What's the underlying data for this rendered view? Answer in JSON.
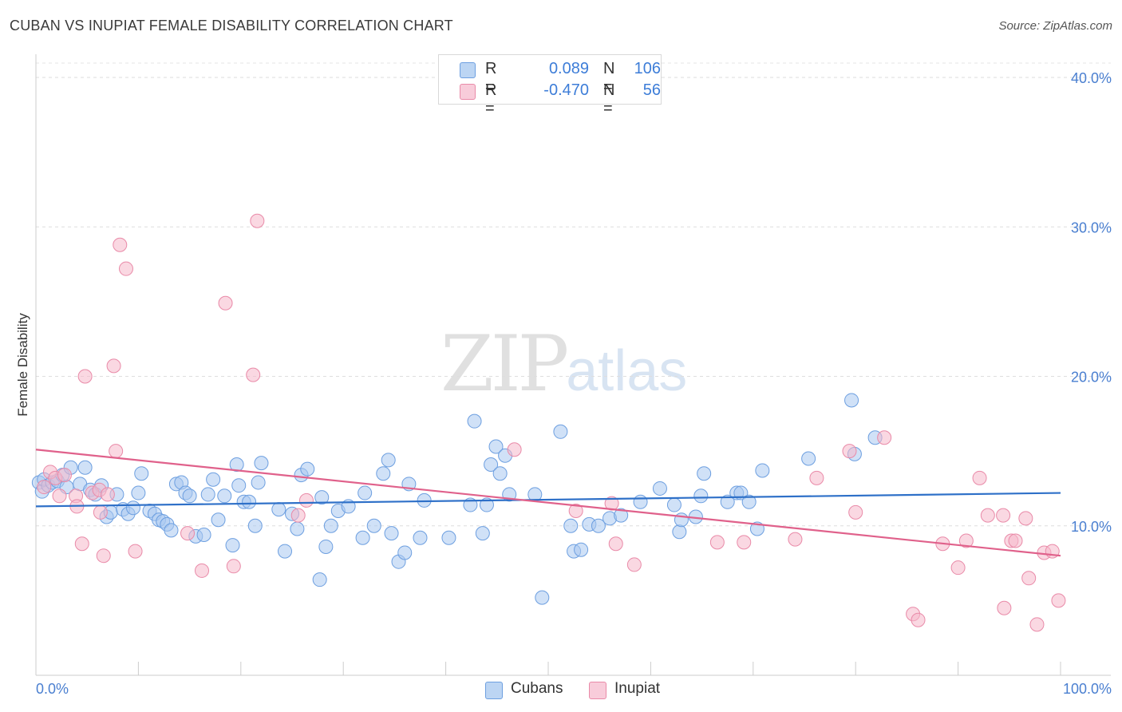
{
  "header": {
    "title": "CUBAN VS INUPIAT FEMALE DISABILITY CORRELATION CHART",
    "source": "Source: ZipAtlas.com"
  },
  "watermark": {
    "zip": "ZIP",
    "atlas": "atlas"
  },
  "legend": {
    "rows": [
      {
        "r_label": "R =",
        "r_value": "0.089",
        "n_label": "N =",
        "n_value": "106",
        "color": "#a9c8f0"
      },
      {
        "r_label": "R =",
        "r_value": "-0.470",
        "n_label": "N =",
        "n_value": "56",
        "color": "#f5b8cb"
      }
    ]
  },
  "bottom_legend": {
    "cubans": "Cubans",
    "inupiat": "Inupiat"
  },
  "chart_data": {
    "type": "scatter",
    "title": "CUBAN VS INUPIAT FEMALE DISABILITY CORRELATION CHART",
    "xlabel": "",
    "ylabel": "Female Disability",
    "xlim": [
      0,
      100
    ],
    "ylim": [
      0,
      40
    ],
    "x_tick_labels": [
      "0.0%",
      "100.0%"
    ],
    "y_ticks": [
      10,
      20,
      30,
      40
    ],
    "y_tick_labels": [
      "10.0%",
      "20.0%",
      "30.0%",
      "40.0%"
    ],
    "grid": true,
    "legend_position": "top-center",
    "series": [
      {
        "name": "Cubans",
        "color": "#a9c8f0",
        "stroke": "#6d9fe0",
        "trend_color": "#2e70c8",
        "trend": {
          "x": [
            0,
            100
          ],
          "y": [
            11.3,
            12.2
          ]
        },
        "points": [
          [
            0.3,
            12.9
          ],
          [
            0.6,
            12.3
          ],
          [
            0.8,
            13.1
          ],
          [
            1.2,
            12.7
          ],
          [
            1.6,
            12.9
          ],
          [
            2.1,
            13.0
          ],
          [
            2.6,
            13.4
          ],
          [
            3.0,
            12.6
          ],
          [
            3.4,
            13.9
          ],
          [
            4.3,
            12.8
          ],
          [
            4.8,
            13.9
          ],
          [
            5.3,
            12.4
          ],
          [
            5.8,
            12.1
          ],
          [
            6.4,
            12.7
          ],
          [
            6.9,
            10.6
          ],
          [
            7.3,
            10.9
          ],
          [
            7.9,
            12.1
          ],
          [
            8.5,
            11.1
          ],
          [
            9.0,
            10.8
          ],
          [
            9.5,
            11.2
          ],
          [
            10.0,
            12.2
          ],
          [
            10.3,
            13.5
          ],
          [
            11.1,
            11.0
          ],
          [
            11.6,
            10.8
          ],
          [
            12.0,
            10.4
          ],
          [
            12.4,
            10.3
          ],
          [
            12.8,
            10.1
          ],
          [
            13.2,
            9.7
          ],
          [
            13.7,
            12.8
          ],
          [
            14.2,
            12.9
          ],
          [
            14.6,
            12.2
          ],
          [
            15.0,
            12.0
          ],
          [
            15.6,
            9.3
          ],
          [
            16.4,
            9.4
          ],
          [
            16.8,
            12.1
          ],
          [
            17.3,
            13.1
          ],
          [
            17.8,
            10.4
          ],
          [
            18.4,
            12.0
          ],
          [
            19.2,
            8.7
          ],
          [
            19.6,
            14.1
          ],
          [
            19.8,
            12.7
          ],
          [
            20.3,
            11.6
          ],
          [
            20.8,
            11.6
          ],
          [
            21.4,
            10.0
          ],
          [
            21.7,
            12.9
          ],
          [
            22.0,
            14.2
          ],
          [
            23.7,
            11.1
          ],
          [
            24.3,
            8.3
          ],
          [
            25.0,
            10.8
          ],
          [
            25.5,
            9.8
          ],
          [
            25.9,
            13.4
          ],
          [
            26.5,
            13.8
          ],
          [
            27.7,
            6.4
          ],
          [
            27.9,
            11.9
          ],
          [
            28.3,
            8.6
          ],
          [
            28.8,
            10.0
          ],
          [
            29.5,
            11.0
          ],
          [
            30.5,
            11.3
          ],
          [
            31.9,
            9.2
          ],
          [
            32.1,
            12.2
          ],
          [
            33.0,
            10.0
          ],
          [
            33.9,
            13.5
          ],
          [
            34.4,
            14.4
          ],
          [
            34.7,
            9.5
          ],
          [
            35.4,
            7.6
          ],
          [
            36.0,
            8.2
          ],
          [
            36.4,
            12.8
          ],
          [
            37.5,
            9.2
          ],
          [
            37.9,
            11.7
          ],
          [
            40.3,
            9.2
          ],
          [
            42.4,
            11.4
          ],
          [
            42.8,
            17.0
          ],
          [
            43.6,
            9.5
          ],
          [
            44.0,
            11.4
          ],
          [
            44.4,
            14.1
          ],
          [
            44.9,
            15.3
          ],
          [
            45.3,
            13.5
          ],
          [
            45.8,
            14.7
          ],
          [
            46.2,
            12.1
          ],
          [
            48.7,
            12.1
          ],
          [
            49.4,
            5.2
          ],
          [
            51.2,
            16.3
          ],
          [
            52.2,
            10.0
          ],
          [
            52.5,
            8.3
          ],
          [
            53.2,
            8.4
          ],
          [
            54.0,
            10.1
          ],
          [
            54.9,
            10.0
          ],
          [
            56.0,
            10.5
          ],
          [
            57.1,
            10.7
          ],
          [
            59.0,
            11.6
          ],
          [
            60.9,
            12.5
          ],
          [
            62.3,
            11.4
          ],
          [
            62.8,
            9.6
          ],
          [
            63.0,
            10.4
          ],
          [
            64.4,
            10.6
          ],
          [
            64.9,
            12.0
          ],
          [
            65.2,
            13.5
          ],
          [
            67.5,
            11.6
          ],
          [
            68.4,
            12.2
          ],
          [
            68.8,
            12.2
          ],
          [
            69.6,
            11.6
          ],
          [
            70.4,
            9.8
          ],
          [
            70.9,
            13.7
          ],
          [
            75.4,
            14.5
          ],
          [
            79.6,
            18.4
          ],
          [
            79.9,
            14.8
          ],
          [
            81.9,
            15.9
          ]
        ]
      },
      {
        "name": "Inupiat",
        "color": "#f5b8cb",
        "stroke": "#e98aa8",
        "trend_color": "#e0618b",
        "trend": {
          "x": [
            0,
            100
          ],
          "y": [
            15.1,
            8.0
          ]
        },
        "points": [
          [
            0.8,
            12.6
          ],
          [
            1.4,
            13.6
          ],
          [
            1.9,
            13.2
          ],
          [
            2.3,
            12.0
          ],
          [
            2.8,
            13.4
          ],
          [
            3.9,
            12.0
          ],
          [
            4.0,
            11.3
          ],
          [
            4.5,
            8.8
          ],
          [
            4.8,
            20.0
          ],
          [
            5.5,
            12.2
          ],
          [
            6.2,
            12.4
          ],
          [
            6.3,
            10.9
          ],
          [
            6.6,
            8.0
          ],
          [
            7.0,
            12.1
          ],
          [
            7.6,
            20.7
          ],
          [
            7.8,
            15.0
          ],
          [
            8.2,
            28.8
          ],
          [
            8.8,
            27.2
          ],
          [
            9.7,
            8.3
          ],
          [
            14.8,
            9.5
          ],
          [
            16.2,
            7.0
          ],
          [
            18.5,
            24.9
          ],
          [
            19.3,
            7.3
          ],
          [
            21.2,
            20.1
          ],
          [
            21.6,
            30.4
          ],
          [
            25.6,
            10.7
          ],
          [
            26.4,
            11.7
          ],
          [
            46.7,
            15.1
          ],
          [
            52.7,
            11.0
          ],
          [
            56.2,
            11.5
          ],
          [
            56.6,
            8.8
          ],
          [
            58.4,
            7.4
          ],
          [
            66.5,
            8.9
          ],
          [
            69.1,
            8.9
          ],
          [
            74.1,
            9.1
          ],
          [
            76.2,
            13.2
          ],
          [
            79.4,
            15.0
          ],
          [
            80.0,
            10.9
          ],
          [
            82.8,
            15.9
          ],
          [
            85.6,
            4.1
          ],
          [
            86.1,
            3.7
          ],
          [
            88.5,
            8.8
          ],
          [
            90.0,
            7.2
          ],
          [
            90.8,
            9.0
          ],
          [
            92.1,
            13.2
          ],
          [
            92.9,
            10.7
          ],
          [
            94.4,
            10.7
          ],
          [
            94.5,
            4.5
          ],
          [
            95.2,
            9.0
          ],
          [
            95.6,
            9.0
          ],
          [
            96.6,
            10.5
          ],
          [
            96.9,
            6.5
          ],
          [
            97.7,
            3.4
          ],
          [
            98.4,
            8.2
          ],
          [
            99.2,
            8.3
          ],
          [
            99.8,
            5.0
          ]
        ]
      }
    ]
  }
}
